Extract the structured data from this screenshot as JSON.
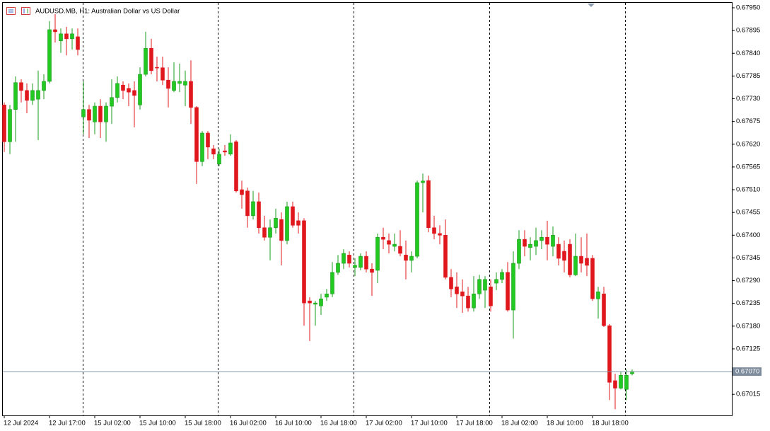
{
  "chart_data": {
    "type": "candlestick",
    "title": "AUDUSD.MB, H1:  Australian Dollar vs US Dollar",
    "up_color": "#22c922",
    "down_color": "#e0181e",
    "ylim": [
      0.66964,
      0.67962
    ],
    "yticks": [
      {
        "value": 0.6795,
        "label": "0.67950"
      },
      {
        "value": 0.67895,
        "label": "0.67895"
      },
      {
        "value": 0.6784,
        "label": "0.67840"
      },
      {
        "value": 0.67785,
        "label": "0.67785"
      },
      {
        "value": 0.6773,
        "label": "0.67730"
      },
      {
        "value": 0.67675,
        "label": "0.67675"
      },
      {
        "value": 0.6762,
        "label": "0.67620"
      },
      {
        "value": 0.67565,
        "label": "0.67565"
      },
      {
        "value": 0.6751,
        "label": "0.67510"
      },
      {
        "value": 0.67455,
        "label": "0.67455"
      },
      {
        "value": 0.674,
        "label": "0.67400"
      },
      {
        "value": 0.67345,
        "label": "0.67345"
      },
      {
        "value": 0.6729,
        "label": "0.67290"
      },
      {
        "value": 0.67235,
        "label": "0.67235"
      },
      {
        "value": 0.6718,
        "label": "0.67180"
      },
      {
        "value": 0.67125,
        "label": "0.67125"
      },
      {
        "value": 0.67015,
        "label": "0.67015"
      }
    ],
    "current_price": {
      "value": 0.6707,
      "label": "0.67070"
    },
    "categories": [
      "12 Jul 2024",
      null,
      null,
      null,
      null,
      null,
      null,
      null,
      "12 Jul 17:00",
      null,
      null,
      null,
      null,
      null,
      null,
      null,
      "15 Jul 02:00",
      null,
      null,
      null,
      null,
      null,
      null,
      null,
      "15 Jul 10:00",
      null,
      null,
      null,
      null,
      null,
      null,
      null,
      "15 Jul 18:00",
      null,
      null,
      null,
      null,
      null,
      null,
      null,
      "16 Jul 02:00",
      null,
      null,
      null,
      null,
      null,
      null,
      null,
      "16 Jul 10:00",
      null,
      null,
      null,
      null,
      null,
      null,
      null,
      "16 Jul 18:00",
      null,
      null,
      null,
      null,
      null,
      null,
      null,
      "17 Jul 02:00",
      null,
      null,
      null,
      null,
      null,
      null,
      null,
      "17 Jul 10:00",
      null,
      null,
      null,
      null,
      null,
      null,
      null,
      "17 Jul 18:00",
      null,
      null,
      null,
      null,
      null,
      null,
      null,
      "18 Jul 02:00",
      null,
      null,
      null,
      null,
      null,
      null,
      null,
      "18 Jul 10:00",
      null,
      null,
      null,
      null,
      null,
      null,
      null,
      "18 Jul 18:00",
      null,
      null,
      null,
      null,
      null,
      null,
      null
    ],
    "ohlc": [
      [
        0.67715,
        0.67721,
        0.67601,
        0.67626
      ],
      [
        0.67626,
        0.67715,
        0.67596,
        0.67704
      ],
      [
        0.67704,
        0.67784,
        0.67626,
        0.67769
      ],
      [
        0.67769,
        0.67777,
        0.67721,
        0.6775
      ],
      [
        0.6775,
        0.67767,
        0.67695,
        0.67726
      ],
      [
        0.67726,
        0.67767,
        0.67715,
        0.6775
      ],
      [
        0.67729,
        0.67798,
        0.6763,
        0.6775
      ],
      [
        0.6775,
        0.67789,
        0.67729,
        0.67772
      ],
      [
        0.67772,
        0.67918,
        0.67767,
        0.67897
      ],
      [
        0.67897,
        0.67935,
        0.67866,
        0.67892
      ],
      [
        0.6787,
        0.679,
        0.67841,
        0.67887
      ],
      [
        0.67887,
        0.67904,
        0.67835,
        0.67875
      ],
      [
        0.67875,
        0.679,
        0.67849,
        0.67887
      ],
      [
        0.6788,
        0.679,
        0.67835,
        0.67849
      ],
      [
        0.67686,
        0.67772,
        0.67644,
        0.67704
      ],
      [
        0.67704,
        0.67715,
        0.67635,
        0.67678
      ],
      [
        0.67674,
        0.67721,
        0.67644,
        0.67712
      ],
      [
        0.67712,
        0.67729,
        0.67635,
        0.67674
      ],
      [
        0.67674,
        0.67721,
        0.67626,
        0.67712
      ],
      [
        0.67712,
        0.67777,
        0.67669,
        0.67733
      ],
      [
        0.67733,
        0.67784,
        0.67721,
        0.67767
      ],
      [
        0.67763,
        0.67772,
        0.67729,
        0.6775
      ],
      [
        0.67755,
        0.67767,
        0.67712,
        0.67746
      ],
      [
        0.6775,
        0.67772,
        0.67661,
        0.67738
      ],
      [
        0.67715,
        0.67806,
        0.67704,
        0.67789
      ],
      [
        0.67789,
        0.67892,
        0.67784,
        0.67852
      ],
      [
        0.67852,
        0.67875,
        0.67789,
        0.67798
      ],
      [
        0.67806,
        0.67832,
        0.67772,
        0.67805
      ],
      [
        0.67805,
        0.67832,
        0.67763,
        0.67775
      ],
      [
        0.67775,
        0.67806,
        0.67709,
        0.67755
      ],
      [
        0.6775,
        0.67818,
        0.67746,
        0.67772
      ],
      [
        0.67767,
        0.67815,
        0.67746,
        0.67772
      ],
      [
        0.67763,
        0.67798,
        0.67712,
        0.67772
      ],
      [
        0.67772,
        0.67823,
        0.67669,
        0.67709
      ],
      [
        0.67709,
        0.67712,
        0.67524,
        0.67578
      ],
      [
        0.67578,
        0.67652,
        0.67567,
        0.67647
      ],
      [
        0.67647,
        0.67652,
        0.67584,
        0.67613
      ],
      [
        0.67609,
        0.67618,
        0.67584,
        0.67596
      ],
      [
        0.67572,
        0.67609,
        0.67567,
        0.67596
      ],
      [
        0.67604,
        0.67618,
        0.67592,
        0.67601
      ],
      [
        0.67596,
        0.67644,
        0.67592,
        0.67623
      ],
      [
        0.67626,
        0.6763,
        0.67503,
        0.67507
      ],
      [
        0.6751,
        0.67532,
        0.67464,
        0.67498
      ],
      [
        0.67507,
        0.67515,
        0.67418,
        0.67447
      ],
      [
        0.67447,
        0.67507,
        0.67438,
        0.67481
      ],
      [
        0.67481,
        0.67503,
        0.67404,
        0.67418
      ],
      [
        0.67418,
        0.67447,
        0.67387,
        0.67395
      ],
      [
        0.67395,
        0.67438,
        0.67339,
        0.67418
      ],
      [
        0.67418,
        0.67464,
        0.67404,
        0.67441
      ],
      [
        0.67438,
        0.67455,
        0.67327,
        0.67387
      ],
      [
        0.67387,
        0.67481,
        0.67378,
        0.67469
      ],
      [
        0.67469,
        0.67481,
        0.67418,
        0.67424
      ],
      [
        0.67435,
        0.67455,
        0.67404,
        0.67424
      ],
      [
        0.67435,
        0.67441,
        0.67181,
        0.67236
      ],
      [
        0.67241,
        0.6725,
        0.67144,
        0.67236
      ],
      [
        0.67233,
        0.67241,
        0.67181,
        0.67236
      ],
      [
        0.67229,
        0.67258,
        0.67207,
        0.67246
      ],
      [
        0.6725,
        0.6727,
        0.67241,
        0.67258
      ],
      [
        0.67258,
        0.67335,
        0.6725,
        0.6731
      ],
      [
        0.6731,
        0.67352,
        0.67304,
        0.67332
      ],
      [
        0.67332,
        0.67366,
        0.67318,
        0.67356
      ],
      [
        0.67352,
        0.67361,
        0.67322,
        0.67332
      ],
      [
        0.67322,
        0.67344,
        0.67301,
        0.67327
      ],
      [
        0.67322,
        0.67356,
        0.67315,
        0.67349
      ],
      [
        0.67349,
        0.67361,
        0.6731,
        0.67318
      ],
      [
        0.67318,
        0.67332,
        0.67253,
        0.6731
      ],
      [
        0.67315,
        0.67404,
        0.67284,
        0.67395
      ],
      [
        0.67395,
        0.67418,
        0.67366,
        0.6739
      ],
      [
        0.67387,
        0.67404,
        0.67356,
        0.67378
      ],
      [
        0.67373,
        0.67404,
        0.67361,
        0.67378
      ],
      [
        0.67373,
        0.67412,
        0.67349,
        0.67356
      ],
      [
        0.67352,
        0.67387,
        0.67293,
        0.67339
      ],
      [
        0.67339,
        0.67361,
        0.6731,
        0.67349
      ],
      [
        0.67349,
        0.67532,
        0.67344,
        0.67527
      ],
      [
        0.67527,
        0.67549,
        0.67455,
        0.67531
      ],
      [
        0.67532,
        0.67544,
        0.67407,
        0.67418
      ],
      [
        0.67418,
        0.67447,
        0.6739,
        0.67404
      ],
      [
        0.67404,
        0.67424,
        0.67378,
        0.674
      ],
      [
        0.674,
        0.67438,
        0.67293,
        0.67298
      ],
      [
        0.67298,
        0.67318,
        0.6725,
        0.6727
      ],
      [
        0.67275,
        0.6731,
        0.67224,
        0.67258
      ],
      [
        0.67263,
        0.67293,
        0.67212,
        0.67253
      ],
      [
        0.67253,
        0.67275,
        0.67215,
        0.67224
      ],
      [
        0.67224,
        0.67301,
        0.67215,
        0.67258
      ],
      [
        0.67258,
        0.67304,
        0.67246,
        0.67293
      ],
      [
        0.67267,
        0.67301,
        0.67224,
        0.67293
      ],
      [
        0.67275,
        0.67293,
        0.67215,
        0.67229
      ],
      [
        0.67284,
        0.6731,
        0.67267,
        0.67293
      ],
      [
        0.67293,
        0.67318,
        0.67284,
        0.6731
      ],
      [
        0.6731,
        0.67335,
        0.67215,
        0.67219
      ],
      [
        0.67219,
        0.67361,
        0.6715,
        0.67332
      ],
      [
        0.67332,
        0.67412,
        0.67318,
        0.6739
      ],
      [
        0.6739,
        0.67412,
        0.67349,
        0.67373
      ],
      [
        0.6737,
        0.67395,
        0.67339,
        0.67378
      ],
      [
        0.67373,
        0.67418,
        0.67352,
        0.67387
      ],
      [
        0.67387,
        0.67412,
        0.67366,
        0.67395
      ],
      [
        0.67395,
        0.67435,
        0.67339,
        0.67378
      ],
      [
        0.67373,
        0.67421,
        0.67349,
        0.674
      ],
      [
        0.67378,
        0.67395,
        0.67327,
        0.67344
      ],
      [
        0.67361,
        0.67387,
        0.6731,
        0.67339
      ],
      [
        0.67378,
        0.6739,
        0.67298,
        0.67304
      ],
      [
        0.67304,
        0.67404,
        0.67301,
        0.67349
      ],
      [
        0.67349,
        0.67395,
        0.6731,
        0.67332
      ],
      [
        0.67344,
        0.67404,
        0.67301,
        0.67327
      ],
      [
        0.67344,
        0.67352,
        0.67241,
        0.67246
      ],
      [
        0.67246,
        0.67275,
        0.67198,
        0.67263
      ],
      [
        0.67258,
        0.67275,
        0.67178,
        0.67181
      ],
      [
        0.67181,
        0.67185,
        0.67001,
        0.67044
      ],
      [
        0.67048,
        0.67065,
        0.66979,
        0.6703
      ],
      [
        0.6703,
        0.6707,
        0.67027,
        0.67061
      ],
      [
        0.67027,
        0.67075,
        0.67001,
        0.67061
      ],
      [
        0.67065,
        0.67075,
        0.67061,
        0.6707
      ]
    ]
  }
}
